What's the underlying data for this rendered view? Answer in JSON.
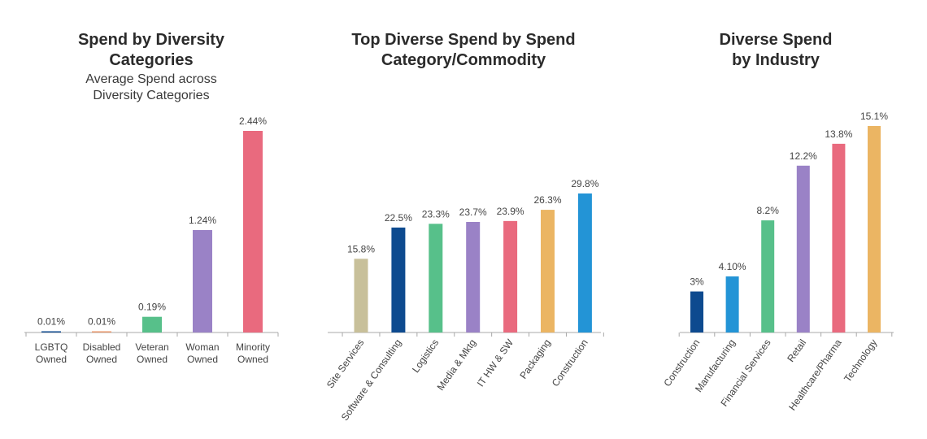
{
  "chart_data": [
    {
      "type": "bar",
      "title_lines": [
        "Spend by Diversity",
        "Categories"
      ],
      "subtitle_lines": [
        "Average Spend across",
        "Diversity Categories"
      ],
      "categories": [
        [
          "LGBTQ",
          "Owned"
        ],
        [
          "Disabled",
          "Owned"
        ],
        [
          "Veteran",
          "Owned"
        ],
        [
          "Woman",
          "Owned"
        ],
        [
          "Minority",
          "Owned"
        ]
      ],
      "values": [
        0.01,
        0.01,
        0.19,
        1.24,
        2.44
      ],
      "value_labels": [
        "0.01%",
        "0.01%",
        "0.19%",
        "1.24%",
        "2.44%"
      ],
      "colors": [
        "#0d4a8f",
        "#e8966a",
        "#57c08a",
        "#9a82c6",
        "#e96a7e"
      ],
      "ylim": [
        0,
        2.44
      ],
      "label_rotation": 0
    },
    {
      "type": "bar",
      "title_lines": [
        "Top Diverse Spend by Spend",
        "Category/Commodity"
      ],
      "subtitle_lines": [],
      "categories": [
        [
          "Site Services"
        ],
        [
          "Software & Consulting"
        ],
        [
          "Logistics"
        ],
        [
          "Media & Mktg"
        ],
        [
          "IT HW & SW"
        ],
        [
          "Packaging"
        ],
        [
          "Construction"
        ]
      ],
      "values": [
        15.8,
        22.5,
        23.3,
        23.7,
        23.9,
        26.3,
        29.8
      ],
      "value_labels": [
        "15.8%",
        "22.5%",
        "23.3%",
        "23.7%",
        "23.9%",
        "26.3%",
        "29.8%"
      ],
      "colors": [
        "#c8c09a",
        "#0d4a8f",
        "#57c08a",
        "#9a82c6",
        "#e96a7e",
        "#ebb563",
        "#2394d6"
      ],
      "ylim": [
        0,
        29.8
      ],
      "label_rotation": -55
    },
    {
      "type": "bar",
      "title_lines": [
        "Diverse Spend",
        "by Industry"
      ],
      "subtitle_lines": [],
      "categories": [
        [
          "Construction"
        ],
        [
          "Manufacturing"
        ],
        [
          "Financial Services"
        ],
        [
          "Retail"
        ],
        [
          "Healthcare/Pharma"
        ],
        [
          "Technology"
        ]
      ],
      "values": [
        3,
        4.1,
        8.2,
        12.2,
        13.8,
        15.1
      ],
      "value_labels": [
        "3%",
        "4.10%",
        "8.2%",
        "12.2%",
        "13.8%",
        "15.1%"
      ],
      "colors": [
        "#0d4a8f",
        "#2394d6",
        "#57c08a",
        "#9a82c6",
        "#e96a7e",
        "#ebb563"
      ],
      "ylim": [
        0,
        15.1
      ],
      "label_rotation": -55
    }
  ]
}
